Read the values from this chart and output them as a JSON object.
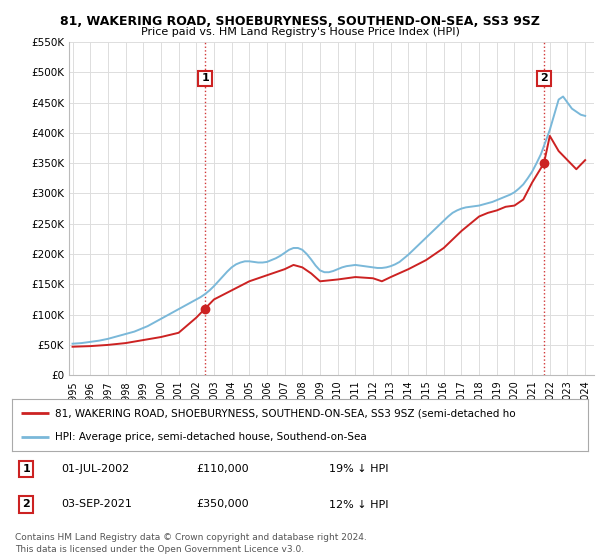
{
  "title": "81, WAKERING ROAD, SHOEBURYNESS, SOUTHEND-ON-SEA, SS3 9SZ",
  "subtitle": "Price paid vs. HM Land Registry's House Price Index (HPI)",
  "ylim": [
    0,
    550000
  ],
  "yticks": [
    0,
    50000,
    100000,
    150000,
    200000,
    250000,
    300000,
    350000,
    400000,
    450000,
    500000,
    550000
  ],
  "ytick_labels": [
    "£0",
    "£50K",
    "£100K",
    "£150K",
    "£200K",
    "£250K",
    "£300K",
    "£350K",
    "£400K",
    "£450K",
    "£500K",
    "£550K"
  ],
  "hpi_color": "#7ab8d9",
  "price_color": "#cc2222",
  "point1_x": 2002.5,
  "point1_y": 110000,
  "point2_x": 2021.67,
  "point2_y": 350000,
  "legend_line1": "81, WAKERING ROAD, SHOEBURYNESS, SOUTHEND-ON-SEA, SS3 9SZ (semi-detached ho",
  "legend_line2": "HPI: Average price, semi-detached house, Southend-on-Sea",
  "footer1": "Contains HM Land Registry data © Crown copyright and database right 2024.",
  "footer2": "This data is licensed under the Open Government Licence v3.0.",
  "background_color": "#ffffff",
  "grid_color": "#dddddd",
  "xtick_years": [
    1995,
    1996,
    1997,
    1998,
    1999,
    2000,
    2001,
    2002,
    2003,
    2004,
    2005,
    2006,
    2007,
    2008,
    2009,
    2010,
    2011,
    2012,
    2013,
    2014,
    2015,
    2016,
    2017,
    2018,
    2019,
    2020,
    2021,
    2022,
    2023,
    2024
  ],
  "hpi_years": [
    1995,
    1995.25,
    1995.5,
    1995.75,
    1996,
    1996.25,
    1996.5,
    1996.75,
    1997,
    1997.25,
    1997.5,
    1997.75,
    1998,
    1998.25,
    1998.5,
    1998.75,
    1999,
    1999.25,
    1999.5,
    1999.75,
    2000,
    2000.25,
    2000.5,
    2000.75,
    2001,
    2001.25,
    2001.5,
    2001.75,
    2002,
    2002.25,
    2002.5,
    2002.75,
    2003,
    2003.25,
    2003.5,
    2003.75,
    2004,
    2004.25,
    2004.5,
    2004.75,
    2005,
    2005.25,
    2005.5,
    2005.75,
    2006,
    2006.25,
    2006.5,
    2006.75,
    2007,
    2007.25,
    2007.5,
    2007.75,
    2008,
    2008.25,
    2008.5,
    2008.75,
    2009,
    2009.25,
    2009.5,
    2009.75,
    2010,
    2010.25,
    2010.5,
    2010.75,
    2011,
    2011.25,
    2011.5,
    2011.75,
    2012,
    2012.25,
    2012.5,
    2012.75,
    2013,
    2013.25,
    2013.5,
    2013.75,
    2014,
    2014.25,
    2014.5,
    2014.75,
    2015,
    2015.25,
    2015.5,
    2015.75,
    2016,
    2016.25,
    2016.5,
    2016.75,
    2017,
    2017.25,
    2017.5,
    2017.75,
    2018,
    2018.25,
    2018.5,
    2018.75,
    2019,
    2019.25,
    2019.5,
    2019.75,
    2020,
    2020.25,
    2020.5,
    2020.75,
    2021,
    2021.25,
    2021.5,
    2021.75,
    2022,
    2022.25,
    2022.5,
    2022.75,
    2023,
    2023.25,
    2023.5,
    2023.75,
    2024
  ],
  "hpi_values": [
    52000,
    52500,
    53000,
    54000,
    55000,
    56000,
    57000,
    58500,
    60000,
    62000,
    64000,
    66000,
    68000,
    70000,
    72000,
    75000,
    78000,
    81000,
    85000,
    89000,
    93000,
    97000,
    101000,
    105000,
    109000,
    113000,
    117000,
    121000,
    125000,
    129000,
    134000,
    140000,
    147000,
    155000,
    163000,
    171000,
    178000,
    183000,
    186000,
    188000,
    188000,
    187000,
    186000,
    186000,
    187000,
    190000,
    193000,
    197000,
    202000,
    207000,
    210000,
    210000,
    207000,
    200000,
    191000,
    181000,
    173000,
    170000,
    170000,
    172000,
    175000,
    178000,
    180000,
    181000,
    182000,
    181000,
    180000,
    179000,
    178000,
    177000,
    177000,
    178000,
    180000,
    183000,
    187000,
    193000,
    199000,
    206000,
    213000,
    220000,
    227000,
    234000,
    241000,
    248000,
    255000,
    262000,
    268000,
    272000,
    275000,
    277000,
    278000,
    279000,
    280000,
    282000,
    284000,
    286000,
    289000,
    292000,
    295000,
    298000,
    302000,
    308000,
    315000,
    325000,
    336000,
    350000,
    365000,
    385000,
    405000,
    430000,
    455000,
    460000,
    450000,
    440000,
    435000,
    430000,
    428000
  ],
  "price_years": [
    1995,
    1996,
    1997,
    1998,
    1999,
    2000,
    2001,
    2002,
    2002.5,
    2003,
    2004,
    2005,
    2006,
    2007,
    2007.5,
    2008,
    2008.5,
    2009,
    2010,
    2011,
    2012,
    2012.5,
    2013,
    2014,
    2015,
    2016,
    2017,
    2018,
    2018.5,
    2019,
    2019.5,
    2020,
    2020.5,
    2021,
    2021.67,
    2022,
    2022.5,
    2023,
    2023.5,
    2024
  ],
  "price_values": [
    47000,
    48000,
    50000,
    53000,
    58000,
    63000,
    70000,
    95000,
    110000,
    125000,
    140000,
    155000,
    165000,
    175000,
    182000,
    178000,
    168000,
    155000,
    158000,
    162000,
    160000,
    155000,
    162000,
    175000,
    190000,
    210000,
    238000,
    262000,
    268000,
    272000,
    278000,
    280000,
    290000,
    318000,
    350000,
    395000,
    370000,
    355000,
    340000,
    355000
  ]
}
